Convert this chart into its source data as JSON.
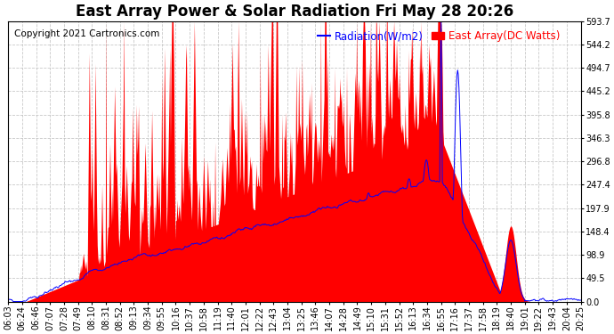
{
  "title": "East Array Power & Solar Radiation Fri May 28 20:26",
  "copyright": "Copyright 2021 Cartronics.com",
  "legend_radiation": "Radiation(W/m2)",
  "legend_east_array": "East Array(DC Watts)",
  "radiation_color": "blue",
  "east_array_color": "red",
  "background_color": "#ffffff",
  "grid_color": "#bbbbbb",
  "yticks": [
    0.0,
    49.5,
    98.9,
    148.4,
    197.9,
    247.4,
    296.8,
    346.3,
    395.8,
    445.2,
    494.7,
    544.2,
    593.7
  ],
  "xtick_labels": [
    "06:03",
    "06:24",
    "06:46",
    "07:07",
    "07:28",
    "07:49",
    "08:10",
    "08:31",
    "08:52",
    "09:13",
    "09:34",
    "09:55",
    "10:16",
    "10:37",
    "10:58",
    "11:19",
    "11:40",
    "12:01",
    "12:22",
    "12:43",
    "13:04",
    "13:25",
    "13:46",
    "14:07",
    "14:28",
    "14:49",
    "15:10",
    "15:31",
    "15:52",
    "16:13",
    "16:34",
    "16:55",
    "17:16",
    "17:37",
    "17:58",
    "18:19",
    "18:40",
    "19:01",
    "19:22",
    "19:43",
    "20:04",
    "20:25"
  ],
  "ymax": 593.7,
  "ymin": 0.0,
  "title_fontsize": 12,
  "copyright_fontsize": 7.5,
  "legend_fontsize": 8.5,
  "tick_fontsize": 7
}
